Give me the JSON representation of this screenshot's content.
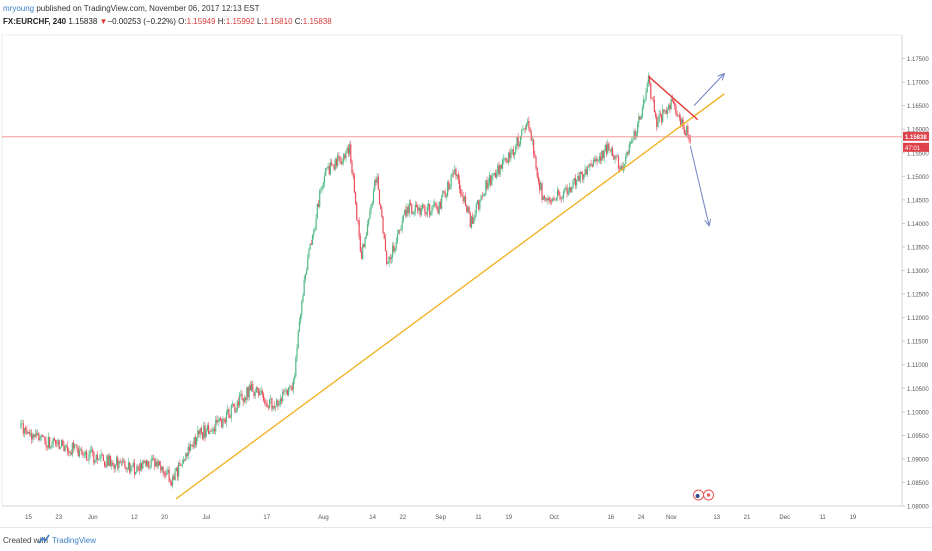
{
  "header": {
    "author": "mryoung",
    "published": "published on TradingView.com, November 06, 2017 12:13 EST",
    "symbol_tf": "FX:EURCHF, 240",
    "last": "1.15838",
    "arrow": "▼",
    "change": "−0.00253 (−0.22%)",
    "o_label": "O:",
    "o": "1.15949",
    "h_label": "H:",
    "h": "1.15992",
    "l_label": "L:",
    "l": "1.15810",
    "c_label": "C:",
    "c": "1.15838"
  },
  "footer": {
    "created_with": "Created with",
    "brand": "TradingView"
  },
  "colors": {
    "up": "#53b987",
    "down": "#eb4d5c",
    "trendline": "#f0b429",
    "resistance": "#e53935",
    "price_line": "#ef8a8a",
    "arrow": "#6f82c4",
    "badge": "#e0424c"
  },
  "chart_data": {
    "type": "candlestick",
    "symbol": "FX:EURCHF",
    "interval": "240",
    "ylim": [
      1.08,
      1.18
    ],
    "y_ticks": [
      "1.17500",
      "1.17000",
      "1.16500",
      "1.16000",
      "1.15500",
      "1.15000",
      "1.14500",
      "1.14000",
      "1.13500",
      "1.13000",
      "1.12500",
      "1.12000",
      "1.11500",
      "1.11000",
      "1.10500",
      "1.10000",
      "1.09500",
      "1.09000",
      "1.08500",
      "1.08000"
    ],
    "x_ticks": [
      "15",
      "23",
      "Jun",
      "12",
      "20",
      "Jul",
      "17",
      "Aug",
      "14",
      "22",
      "Sep",
      "11",
      "19",
      "Oct",
      "16",
      "24",
      "Nov",
      "13",
      "21",
      "Dec",
      "11",
      "19"
    ],
    "last_price_label": "1.15838",
    "countdown_label": "47:01",
    "close_path": [
      {
        "date": "2017-05-13",
        "close": 1.0965
      },
      {
        "date": "2017-05-20",
        "close": 1.0935
      },
      {
        "date": "2017-05-27",
        "close": 1.092
      },
      {
        "date": "2017-06-05",
        "close": 1.0895
      },
      {
        "date": "2017-06-12",
        "close": 1.088
      },
      {
        "date": "2017-06-18",
        "close": 1.089
      },
      {
        "date": "2017-06-22",
        "close": 1.0855
      },
      {
        "date": "2017-06-29",
        "close": 1.095
      },
      {
        "date": "2017-07-05",
        "close": 1.098
      },
      {
        "date": "2017-07-13",
        "close": 1.105
      },
      {
        "date": "2017-07-19",
        "close": 1.101
      },
      {
        "date": "2017-07-24",
        "close": 1.106
      },
      {
        "date": "2017-07-27",
        "close": 1.128
      },
      {
        "date": "2017-08-01",
        "close": 1.15
      },
      {
        "date": "2017-08-08",
        "close": 1.156
      },
      {
        "date": "2017-08-11",
        "close": 1.133
      },
      {
        "date": "2017-08-15",
        "close": 1.15
      },
      {
        "date": "2017-08-18",
        "close": 1.131
      },
      {
        "date": "2017-08-23",
        "close": 1.143
      },
      {
        "date": "2017-08-31",
        "close": 1.143
      },
      {
        "date": "2017-09-05",
        "close": 1.151
      },
      {
        "date": "2017-09-09",
        "close": 1.14
      },
      {
        "date": "2017-09-13",
        "close": 1.148
      },
      {
        "date": "2017-09-20",
        "close": 1.155
      },
      {
        "date": "2017-09-24",
        "close": 1.162
      },
      {
        "date": "2017-09-28",
        "close": 1.145
      },
      {
        "date": "2017-10-05",
        "close": 1.147
      },
      {
        "date": "2017-10-10",
        "close": 1.152
      },
      {
        "date": "2017-10-15",
        "close": 1.156
      },
      {
        "date": "2017-10-19",
        "close": 1.152
      },
      {
        "date": "2017-10-23",
        "close": 1.16
      },
      {
        "date": "2017-10-26",
        "close": 1.1705
      },
      {
        "date": "2017-10-28",
        "close": 1.161
      },
      {
        "date": "2017-11-01",
        "close": 1.166
      },
      {
        "date": "2017-11-03",
        "close": 1.162
      },
      {
        "date": "2017-11-06",
        "close": 1.15838
      }
    ],
    "drawings": [
      {
        "kind": "trendline",
        "name": "support",
        "from": {
          "date": "2017-06-23",
          "price": 1.0815
        },
        "to": {
          "date": "2017-11-15",
          "price": 1.1675
        }
      },
      {
        "kind": "trendline",
        "name": "resistance",
        "from": {
          "date": "2017-10-26",
          "price": 1.1712
        },
        "to": {
          "date": "2017-11-08",
          "price": 1.162
        }
      },
      {
        "kind": "arrow",
        "name": "breakout-up",
        "from": {
          "date": "2017-11-07",
          "price": 1.165
        },
        "to": {
          "date": "2017-11-15",
          "price": 1.1718
        }
      },
      {
        "kind": "arrow",
        "name": "breakdown",
        "from": {
          "date": "2017-11-06",
          "price": 1.1565
        },
        "to": {
          "date": "2017-11-11",
          "price": 1.1395
        }
      }
    ]
  }
}
